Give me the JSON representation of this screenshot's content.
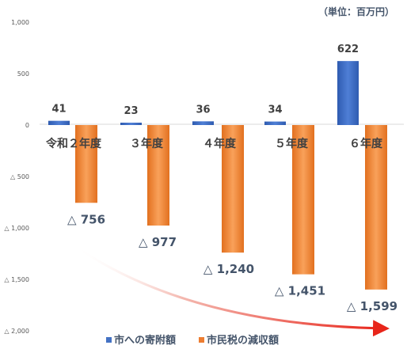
{
  "chart_data": {
    "type": "bar",
    "unit_label": "（単位：百万円）",
    "categories": [
      "令和２年度",
      "３年度",
      "４年度",
      "５年度",
      "６年度"
    ],
    "series": [
      {
        "name": "市への寄附額",
        "color": "#4472C4",
        "values": [
          41,
          23,
          36,
          34,
          622
        ],
        "labels": [
          "41",
          "23",
          "36",
          "34",
          "622"
        ]
      },
      {
        "name": "市民税の減収額",
        "color": "#ED7D31",
        "values": [
          -756,
          -977,
          -1240,
          -1451,
          -1599
        ],
        "labels": [
          "△ 756",
          "△ 977",
          "△ 1,240",
          "△ 1,451",
          "△ 1,599"
        ]
      }
    ],
    "y_ticks": [
      {
        "value": 1000,
        "label": "1,000"
      },
      {
        "value": 500,
        "label": "500"
      },
      {
        "value": 0,
        "label": "0"
      },
      {
        "value": -500,
        "label": "△ 500"
      },
      {
        "value": -1000,
        "label": "△ 1,000"
      },
      {
        "value": -1500,
        "label": "△ 1,500"
      },
      {
        "value": -2000,
        "label": "△ 2,000"
      }
    ],
    "ylim": [
      -2000,
      1000
    ],
    "grid": false,
    "legend_position": "bottom",
    "trend_arrow_color": "#E8251A"
  }
}
